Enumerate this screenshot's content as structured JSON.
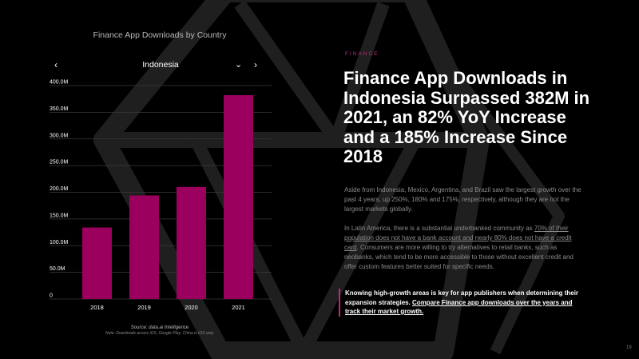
{
  "chart_data": {
    "type": "bar",
    "title": "Finance App Downloads by Country",
    "categories": [
      "2018",
      "2019",
      "2020",
      "2021"
    ],
    "values": [
      134,
      194,
      210,
      382
    ],
    "ylim": [
      0,
      400
    ],
    "yticks": [
      "0",
      "50.0M",
      "100.0M",
      "150.0M",
      "200.0M",
      "250.0M",
      "300.0M",
      "350.0M",
      "400.0M"
    ],
    "grid": true,
    "bar_color": "#9b005f",
    "xlabel": "",
    "ylabel": ""
  },
  "selector": {
    "country": "Indonesia",
    "prev_icon": "‹",
    "dropdown_icon": "⌄",
    "next_icon": "›"
  },
  "source": {
    "line1": "Source: data.ai Intelligence",
    "line2": "Note: Downloads across iOS, Google Play; China is iOS only."
  },
  "eyebrow": "FINANCE",
  "headline": "Finance App Downloads in Indonesia Surpassed 382M in 2021, an 82% YoY Increase and a 185% Increase Since 2018",
  "paragraph1": "Aside from Indonesia, Mexico, Argentina, and Brazil saw the largest growth over the past 4 years, up 250%, 180% and 175%, respectively, although they are not the largest markets globally.",
  "paragraph2": {
    "before": "In Latin America, there is a substantial underbanked community as ",
    "underlined": "70% of their population does not have a bank account and nearly 80% does not have a credit card",
    "after": ". Consumers are more willing to try alternatives to retail banks, such as neobanks, which tend to be more accessible to those without excellent credit and offer custom features better suited for specific needs."
  },
  "callout": {
    "text": "Knowing high-growth areas is key for app publishers when determining their expansion strategies. ",
    "link": "Compare Finance app downloads over the years and track their market growth."
  },
  "page_number": "19",
  "colors": {
    "accent": "#c2277e",
    "bar": "#9b005f"
  }
}
